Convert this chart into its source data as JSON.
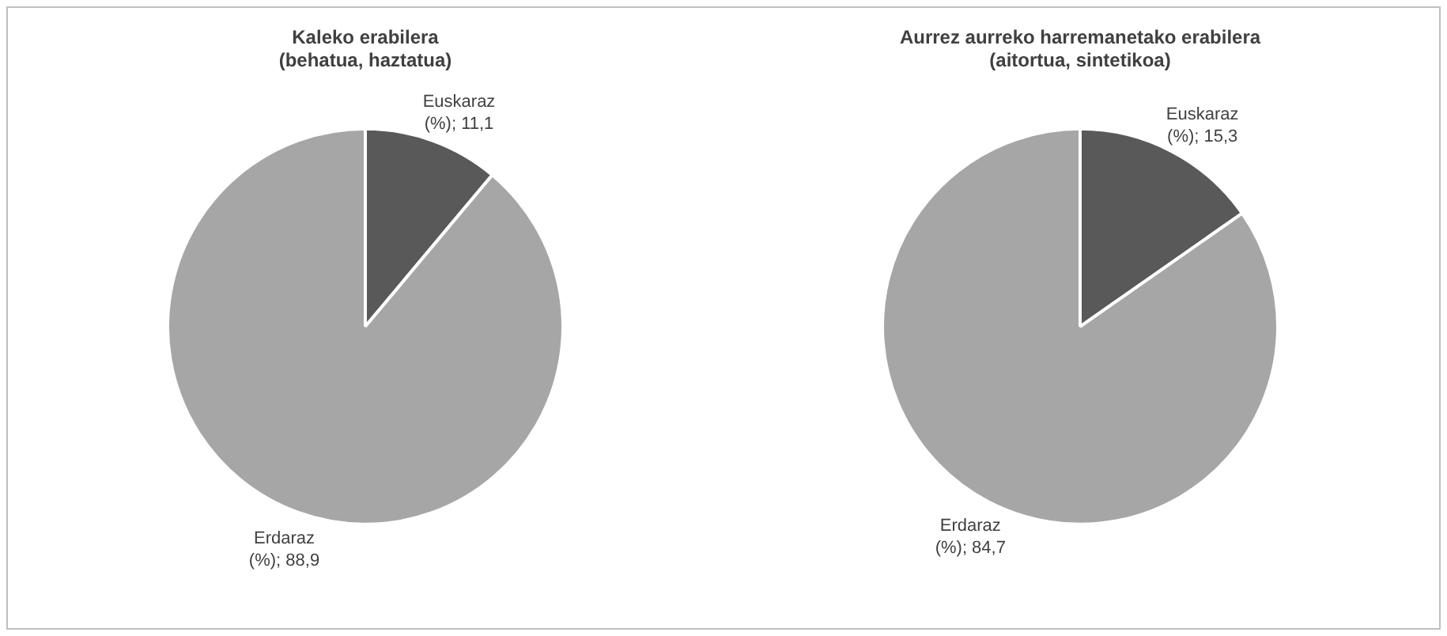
{
  "chart_data": [
    {
      "type": "pie",
      "title": "Kaleko erabilera\n(behatua, haztatua)",
      "categories": [
        "Euskaraz (%)",
        "Erdaraz (%)"
      ],
      "values": [
        11.1,
        88.9
      ],
      "colors": [
        "#595959",
        "#a6a6a6"
      ],
      "value_labels": [
        "11,1",
        "88,9"
      ]
    },
    {
      "type": "pie",
      "title": "Aurrez aurreko harremanetako erabilera\n(aitortua, sintetikoa)",
      "categories": [
        "Euskaraz (%)",
        "Erdaraz (%)"
      ],
      "values": [
        15.3,
        84.7
      ],
      "colors": [
        "#595959",
        "#a6a6a6"
      ],
      "value_labels": [
        "15,3",
        "84,7"
      ]
    }
  ]
}
